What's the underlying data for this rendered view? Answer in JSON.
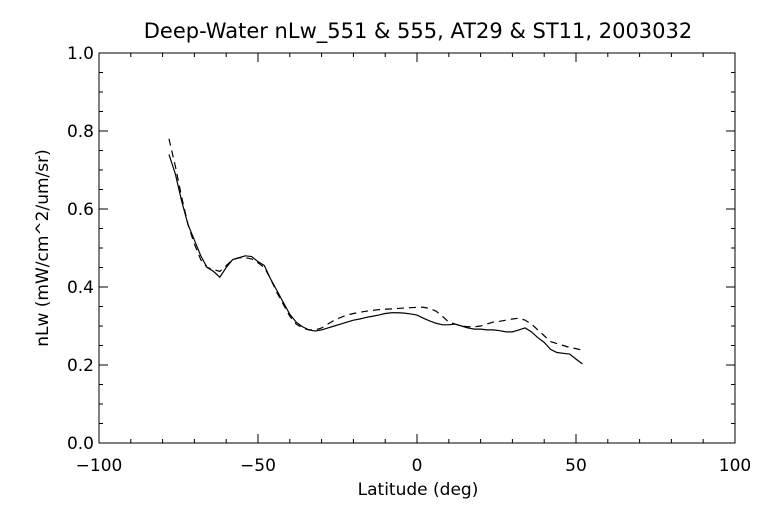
{
  "chart_data": {
    "type": "line",
    "title": "Deep-Water nLw_551 & 555, AT29 & ST11, 2003032",
    "xlabel": "Latitude (deg)",
    "ylabel": "nLw (mW/cm^2/um/sr)",
    "xlim": [
      -100,
      100
    ],
    "ylim": [
      0.0,
      1.0
    ],
    "x_major_ticks": [
      -100,
      -50,
      0,
      50,
      100
    ],
    "x_tick_labels": [
      "−100",
      "−50",
      "0",
      "50",
      "100"
    ],
    "y_major_ticks": [
      0.0,
      0.2,
      0.4,
      0.6,
      0.8,
      1.0
    ],
    "y_tick_labels": [
      "0.0",
      "0.2",
      "0.4",
      "0.6",
      "0.8",
      "1.0"
    ],
    "grid": false,
    "series": [
      {
        "style": "solid",
        "x": [
          -78,
          -76,
          -74,
          -72,
          -70,
          -68,
          -66,
          -64,
          -62,
          -60,
          -58,
          -56,
          -54,
          -52,
          -50,
          -48,
          -46,
          -44,
          -42,
          -40,
          -38,
          -36,
          -34,
          -32,
          -30,
          -28,
          -26,
          -24,
          -22,
          -20,
          -18,
          -16,
          -14,
          -12,
          -10,
          -8,
          -6,
          -4,
          -2,
          0,
          2,
          4,
          6,
          8,
          10,
          12,
          14,
          16,
          18,
          20,
          22,
          24,
          26,
          28,
          30,
          32,
          34,
          36,
          38,
          40,
          42,
          44,
          46,
          48,
          50,
          52
        ],
        "y": [
          0.74,
          0.69,
          0.62,
          0.56,
          0.52,
          0.48,
          0.45,
          0.44,
          0.425,
          0.45,
          0.47,
          0.475,
          0.48,
          0.478,
          0.465,
          0.455,
          0.42,
          0.39,
          0.36,
          0.33,
          0.31,
          0.298,
          0.29,
          0.287,
          0.29,
          0.295,
          0.3,
          0.305,
          0.31,
          0.315,
          0.318,
          0.322,
          0.325,
          0.328,
          0.332,
          0.334,
          0.334,
          0.333,
          0.331,
          0.328,
          0.32,
          0.313,
          0.307,
          0.303,
          0.303,
          0.305,
          0.3,
          0.295,
          0.292,
          0.292,
          0.29,
          0.29,
          0.288,
          0.285,
          0.285,
          0.29,
          0.295,
          0.285,
          0.27,
          0.258,
          0.24,
          0.232,
          0.23,
          0.228,
          0.215,
          0.203
        ]
      },
      {
        "style": "dashed",
        "x": [
          -78,
          -76,
          -74,
          -72,
          -70,
          -68,
          -66,
          -64,
          -62,
          -60,
          -58,
          -56,
          -54,
          -52,
          -50,
          -48,
          -46,
          -44,
          -42,
          -40,
          -38,
          -36,
          -34,
          -32,
          -30,
          -28,
          -26,
          -24,
          -22,
          -20,
          -18,
          -16,
          -14,
          -12,
          -10,
          -8,
          -6,
          -4,
          -2,
          0,
          2,
          4,
          6,
          8,
          10,
          12,
          14,
          16,
          18,
          20,
          22,
          24,
          26,
          28,
          30,
          32,
          34,
          36,
          38,
          40,
          42,
          44,
          46,
          48,
          50,
          52
        ],
        "y": [
          0.78,
          0.71,
          0.63,
          0.56,
          0.51,
          0.47,
          0.45,
          0.445,
          0.44,
          0.455,
          0.47,
          0.475,
          0.475,
          0.472,
          0.462,
          0.45,
          0.42,
          0.385,
          0.355,
          0.325,
          0.305,
          0.295,
          0.29,
          0.29,
          0.295,
          0.305,
          0.315,
          0.322,
          0.328,
          0.332,
          0.335,
          0.338,
          0.34,
          0.342,
          0.343,
          0.344,
          0.345,
          0.346,
          0.347,
          0.348,
          0.348,
          0.345,
          0.338,
          0.325,
          0.31,
          0.305,
          0.3,
          0.298,
          0.298,
          0.3,
          0.305,
          0.31,
          0.312,
          0.315,
          0.318,
          0.32,
          0.315,
          0.305,
          0.29,
          0.275,
          0.26,
          0.255,
          0.25,
          0.245,
          0.242,
          0.238
        ]
      }
    ]
  }
}
